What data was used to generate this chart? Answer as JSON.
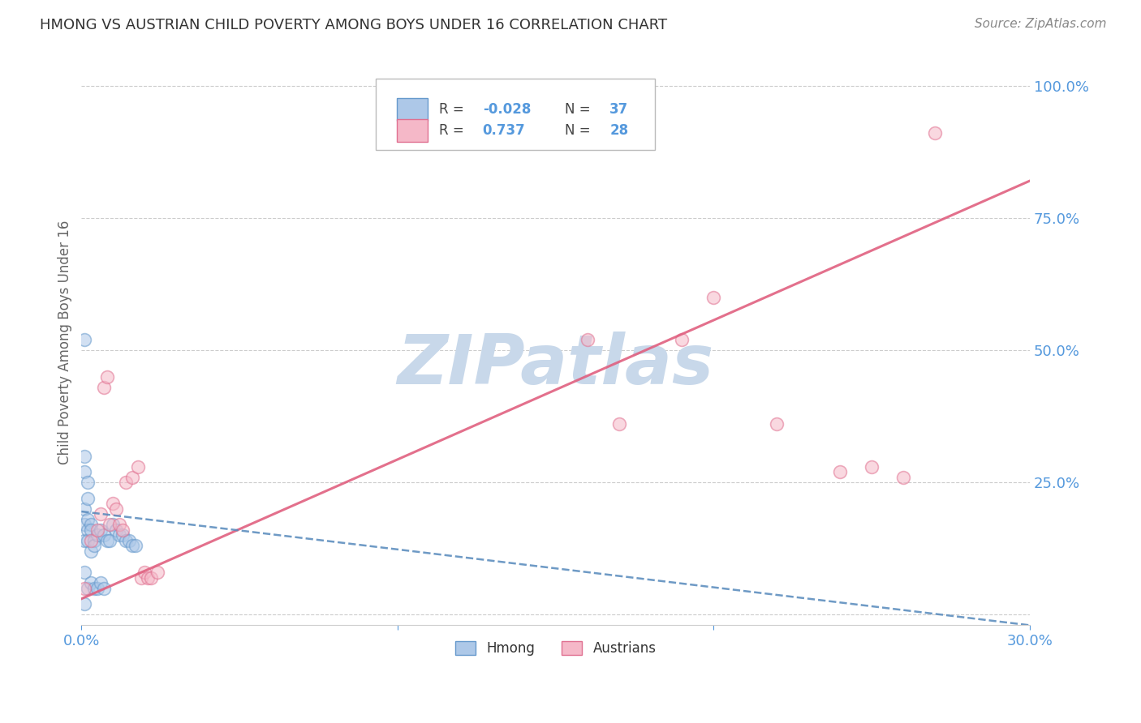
{
  "title": "HMONG VS AUSTRIAN CHILD POVERTY AMONG BOYS UNDER 16 CORRELATION CHART",
  "source": "Source: ZipAtlas.com",
  "ylabel": "Child Poverty Among Boys Under 16",
  "xlim": [
    0.0,
    0.3
  ],
  "ylim": [
    -0.02,
    1.05
  ],
  "hmong_R": "-0.028",
  "hmong_N": "37",
  "austrians_R": "0.737",
  "austrians_N": "28",
  "hmong_color": "#adc8e8",
  "hmong_edge_color": "#6699cc",
  "austrians_color": "#f5b8c8",
  "austrians_edge_color": "#e07090",
  "blue_line_color": "#5588bb",
  "pink_line_color": "#e06080",
  "grid_color": "#cccccc",
  "title_color": "#333333",
  "axis_color": "#5599dd",
  "watermark_color": "#c8d8ea",
  "hmong_x": [
    0.001,
    0.001,
    0.001,
    0.001,
    0.001,
    0.001,
    0.001,
    0.001,
    0.002,
    0.002,
    0.002,
    0.002,
    0.002,
    0.002,
    0.003,
    0.003,
    0.003,
    0.003,
    0.004,
    0.004,
    0.004,
    0.005,
    0.005,
    0.006,
    0.006,
    0.007,
    0.007,
    0.008,
    0.009,
    0.01,
    0.011,
    0.012,
    0.013,
    0.014,
    0.015,
    0.016,
    0.017
  ],
  "hmong_y": [
    0.52,
    0.3,
    0.27,
    0.2,
    0.17,
    0.14,
    0.08,
    0.02,
    0.25,
    0.22,
    0.18,
    0.16,
    0.14,
    0.05,
    0.17,
    0.16,
    0.12,
    0.06,
    0.14,
    0.13,
    0.05,
    0.15,
    0.05,
    0.16,
    0.06,
    0.15,
    0.05,
    0.14,
    0.14,
    0.17,
    0.16,
    0.15,
    0.15,
    0.14,
    0.14,
    0.13,
    0.13
  ],
  "austrians_x": [
    0.001,
    0.003,
    0.005,
    0.006,
    0.007,
    0.008,
    0.009,
    0.01,
    0.011,
    0.012,
    0.013,
    0.014,
    0.016,
    0.018,
    0.019,
    0.02,
    0.021,
    0.022,
    0.024,
    0.16,
    0.17,
    0.19,
    0.2,
    0.22,
    0.24,
    0.25,
    0.26,
    0.27
  ],
  "austrians_y": [
    0.05,
    0.14,
    0.16,
    0.19,
    0.43,
    0.45,
    0.17,
    0.21,
    0.2,
    0.17,
    0.16,
    0.25,
    0.26,
    0.28,
    0.07,
    0.08,
    0.07,
    0.07,
    0.08,
    0.52,
    0.36,
    0.52,
    0.6,
    0.36,
    0.27,
    0.28,
    0.26,
    0.91
  ],
  "dot_size": 130,
  "dot_alpha": 0.55,
  "dot_linewidth": 1.2,
  "aus_line_x0": 0.0,
  "aus_line_y0": 0.03,
  "aus_line_x1": 0.3,
  "aus_line_y1": 0.82,
  "hmong_line_x0": 0.0,
  "hmong_line_y0": 0.195,
  "hmong_line_x1": 0.3,
  "hmong_line_y1": -0.02
}
